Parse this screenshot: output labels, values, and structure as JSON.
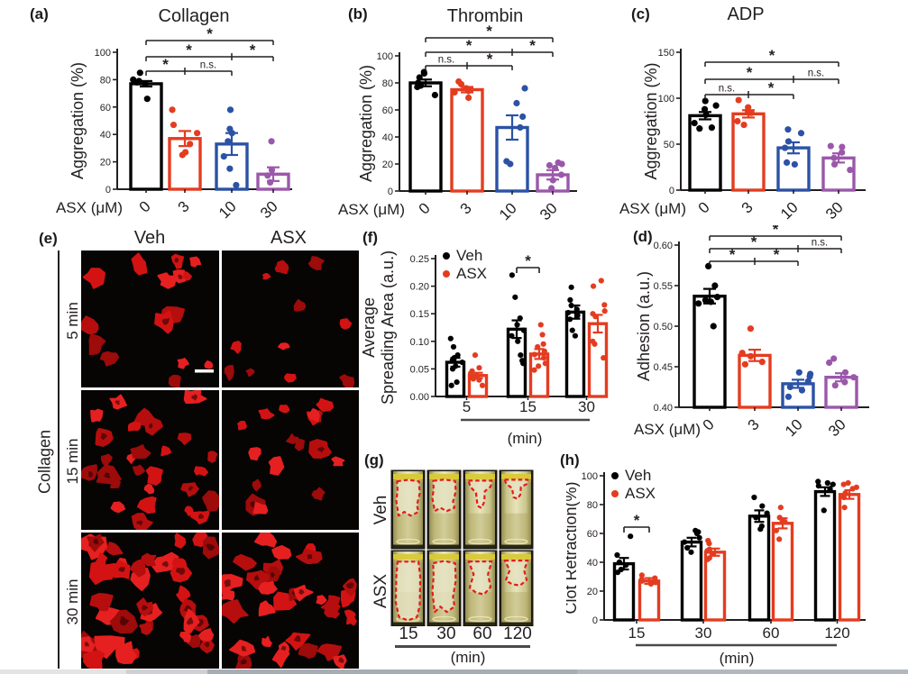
{
  "colors": {
    "black": "#000000",
    "red": "#E43C20",
    "blue": "#2B52A5",
    "purple": "#9B58AA",
    "axis": "#231F20",
    "text": "#231F20",
    "cell_bg": "#070404",
    "blob_reds": [
      "#b60e0e",
      "#d31313",
      "#e62020",
      "#9d0b0b"
    ],
    "tube_outline_red": "#e51a1a",
    "tube_body": "#cfc987",
    "clot_fill": "#e6e3c4"
  },
  "panels": {
    "a": {
      "letter": "(a)"
    },
    "b": {
      "letter": "(b)"
    },
    "c": {
      "letter": "(c)"
    },
    "d": {
      "letter": "(d)"
    },
    "e": {
      "letter": "(e)",
      "columns": [
        "Veh",
        "ASX"
      ],
      "rows": [
        "5 min",
        "15 min",
        "30 min"
      ],
      "side_label": "Collagen",
      "cells": [
        {
          "col": "Veh",
          "row": "5 min",
          "blob_count": 15,
          "blob_min": 4,
          "blob_max": 13,
          "scale_bar": true
        },
        {
          "col": "ASX",
          "row": "5 min",
          "blob_count": 11,
          "blob_min": 3,
          "blob_max": 9,
          "scale_bar": false
        },
        {
          "col": "Veh",
          "row": "15 min",
          "blob_count": 27,
          "blob_min": 5,
          "blob_max": 13,
          "scale_bar": false
        },
        {
          "col": "ASX",
          "row": "15 min",
          "blob_count": 17,
          "blob_min": 5,
          "blob_max": 12,
          "scale_bar": false
        },
        {
          "col": "Veh",
          "row": "30 min",
          "blob_count": 38,
          "blob_min": 6,
          "blob_max": 16,
          "scale_bar": false
        },
        {
          "col": "ASX",
          "row": "30 min",
          "blob_count": 33,
          "blob_min": 5,
          "blob_max": 14,
          "scale_bar": false
        }
      ]
    },
    "f": {
      "letter": "(f)"
    },
    "g": {
      "letter": "(g)",
      "rows": [
        "Veh",
        "ASX"
      ],
      "times": [
        "15",
        "30",
        "60",
        "120"
      ],
      "xlabel": "(min)",
      "tubes": [
        {
          "row": "Veh",
          "clots": [
            {
              "style": "blob",
              "frac": 0.58
            },
            {
              "style": "blob",
              "frac": 0.52
            },
            {
              "style": "funnel",
              "frac": 0.48
            },
            {
              "style": "funnel",
              "frac": 0.36
            }
          ]
        },
        {
          "row": "ASX",
          "clots": [
            {
              "style": "full",
              "frac": 0.95
            },
            {
              "style": "blob",
              "frac": 0.82
            },
            {
              "style": "hourglass",
              "frac": 0.58
            },
            {
              "style": "hourglass",
              "frac": 0.46
            }
          ]
        }
      ]
    },
    "h": {
      "letter": "(h)"
    }
  },
  "chart_data": [
    {
      "id": "a",
      "type": "bar",
      "title": "Collagen",
      "ylabel": "Aggregation (%)",
      "xlabel": "ASX (μM)",
      "categories": [
        "0",
        "3",
        "10",
        "30"
      ],
      "values": [
        77,
        37,
        33,
        11
      ],
      "errors": [
        2,
        5.5,
        8,
        5
      ],
      "dots": [
        [
          85,
          80,
          79,
          78,
          77,
          66
        ],
        [
          58,
          47,
          41,
          33,
          27,
          25
        ],
        [
          58,
          44,
          41,
          35,
          24,
          15,
          3
        ],
        [
          35,
          14,
          10,
          5
        ]
      ],
      "bar_colors": [
        "black",
        "red",
        "blue",
        "purple"
      ],
      "ylim": [
        0,
        100
      ],
      "yticks": [
        0,
        20,
        40,
        60,
        80,
        100
      ],
      "ytick_decimals": 0,
      "grid": false,
      "brackets": [
        {
          "from": 0,
          "to": 3,
          "breaks": [],
          "labels": [
            {
              "between": [
                0,
                3
              ],
              "text": "*"
            }
          ]
        },
        {
          "from": 0,
          "to": 3,
          "breaks": [
            2
          ],
          "labels": [
            {
              "between": [
                0,
                2
              ],
              "text": "*"
            },
            {
              "between": [
                2,
                3
              ],
              "text": "*"
            }
          ]
        },
        {
          "from": 0,
          "to": 2,
          "breaks": [
            1
          ],
          "labels": [
            {
              "between": [
                0,
                1
              ],
              "text": "*"
            },
            {
              "between": [
                1,
                2
              ],
              "text": "n.s."
            }
          ]
        }
      ]
    },
    {
      "id": "b",
      "type": "bar",
      "title": "Thrombin",
      "ylabel": "Aggregation (%)",
      "xlabel": "ASX (μM)",
      "categories": [
        "0",
        "3",
        "10",
        "30"
      ],
      "values": [
        80,
        75,
        47,
        12
      ],
      "errors": [
        2.5,
        2,
        9,
        3.5
      ],
      "dots": [
        [
          88,
          87,
          84,
          80,
          78,
          77,
          71
        ],
        [
          81,
          79,
          76,
          75,
          74,
          73,
          69
        ],
        [
          76,
          65,
          55,
          47,
          22,
          20
        ],
        [
          21,
          20,
          19,
          17,
          12,
          8,
          2
        ]
      ],
      "bar_colors": [
        "black",
        "red",
        "blue",
        "purple"
      ],
      "ylim": [
        0,
        100
      ],
      "yticks": [
        0,
        20,
        40,
        60,
        80,
        100
      ],
      "ytick_decimals": 0,
      "grid": false,
      "brackets": [
        {
          "from": 0,
          "to": 3,
          "breaks": [],
          "labels": [
            {
              "between": [
                0,
                3
              ],
              "text": "*"
            }
          ]
        },
        {
          "from": 0,
          "to": 3,
          "breaks": [
            2
          ],
          "labels": [
            {
              "between": [
                0,
                2
              ],
              "text": "*"
            },
            {
              "between": [
                2,
                3
              ],
              "text": "*"
            }
          ]
        },
        {
          "from": 0,
          "to": 2,
          "breaks": [
            1
          ],
          "labels": [
            {
              "between": [
                0,
                1
              ],
              "text": "n.s."
            },
            {
              "between": [
                1,
                2
              ],
              "text": "*"
            }
          ]
        }
      ]
    },
    {
      "id": "c",
      "type": "bar",
      "title": "ADP",
      "ylabel": "Aggregation (%)",
      "xlabel": "ASX (μM)",
      "categories": [
        "0",
        "3",
        "10",
        "30"
      ],
      "values": [
        81,
        83,
        46,
        35
      ],
      "errors": [
        4,
        4,
        6,
        5
      ],
      "dots": [
        [
          97,
          92,
          88,
          82,
          73,
          68,
          67
        ],
        [
          98,
          90,
          86,
          84,
          75,
          71
        ],
        [
          66,
          62,
          53,
          46,
          30,
          28
        ],
        [
          48,
          47,
          41,
          35,
          28,
          22
        ]
      ],
      "bar_colors": [
        "black",
        "red",
        "blue",
        "purple"
      ],
      "ylim": [
        0,
        150
      ],
      "yticks": [
        0,
        50,
        100,
        150
      ],
      "ytick_decimals": 0,
      "grid": false,
      "brackets": [
        {
          "from": 0,
          "to": 3,
          "breaks": [],
          "labels": [
            {
              "between": [
                0,
                3
              ],
              "text": "*"
            }
          ]
        },
        {
          "from": 0,
          "to": 3,
          "breaks": [
            2
          ],
          "labels": [
            {
              "between": [
                0,
                2
              ],
              "text": "*"
            },
            {
              "between": [
                2,
                3
              ],
              "text": "n.s."
            }
          ]
        },
        {
          "from": 0,
          "to": 2,
          "breaks": [
            1
          ],
          "labels": [
            {
              "between": [
                0,
                1
              ],
              "text": "n.s."
            },
            {
              "between": [
                1,
                2
              ],
              "text": "*"
            }
          ]
        }
      ]
    },
    {
      "id": "d",
      "type": "bar",
      "title": "",
      "ylabel": "Adhesion (a.u.)",
      "xlabel": "ASX (μM)",
      "categories": [
        "0",
        "3",
        "10",
        "30"
      ],
      "values": [
        0.537,
        0.464,
        0.429,
        0.437
      ],
      "errors": [
        0.009,
        0.007,
        0.005,
        0.005
      ],
      "dots": [
        [
          0.574,
          0.55,
          0.536,
          0.532,
          0.53,
          0.528,
          0.5
        ],
        [
          0.497,
          0.467,
          0.463,
          0.456,
          0.453
        ],
        [
          0.443,
          0.441,
          0.438,
          0.432,
          0.425,
          0.421,
          0.413
        ],
        [
          0.46,
          0.455,
          0.443,
          0.437,
          0.431,
          0.427
        ]
      ],
      "bar_colors": [
        "black",
        "red",
        "blue",
        "purple"
      ],
      "ylim": [
        0.4,
        0.6
      ],
      "yticks": [
        0.4,
        0.45,
        0.5,
        0.55,
        0.6
      ],
      "ytick_decimals": 2,
      "grid": false,
      "brackets": [
        {
          "from": 0,
          "to": 3,
          "breaks": [],
          "labels": [
            {
              "between": [
                0,
                3
              ],
              "text": "*"
            }
          ]
        },
        {
          "from": 0,
          "to": 3,
          "breaks": [
            2
          ],
          "labels": [
            {
              "between": [
                0,
                2
              ],
              "text": "*"
            },
            {
              "between": [
                2,
                3
              ],
              "text": "n.s."
            }
          ]
        },
        {
          "from": 0,
          "to": 2,
          "breaks": [
            1
          ],
          "labels": [
            {
              "between": [
                0,
                1
              ],
              "text": "*"
            },
            {
              "between": [
                1,
                2
              ],
              "text": "*"
            }
          ]
        }
      ]
    },
    {
      "id": "f",
      "type": "bar",
      "title": "",
      "ylabel": [
        "Average",
        "Spreading Area (a.u.)"
      ],
      "xlabel": "(min)",
      "categories": [
        "5",
        "15",
        "30"
      ],
      "series": [
        {
          "name": "Veh",
          "color": "black",
          "values": [
            0.062,
            0.122,
            0.153
          ],
          "errors": [
            0.008,
            0.016,
            0.012
          ],
          "dots": [
            [
              0.105,
              0.09,
              0.075,
              0.07,
              0.066,
              0.062,
              0.055,
              0.05,
              0.026,
              0.02
            ],
            [
              0.22,
              0.18,
              0.142,
              0.13,
              0.12,
              0.11,
              0.1,
              0.075,
              0.065,
              0.06
            ],
            [
              0.198,
              0.175,
              0.165,
              0.158,
              0.152,
              0.147,
              0.14,
              0.12,
              0.11
            ]
          ]
        },
        {
          "name": "ASX",
          "color": "red",
          "values": [
            0.038,
            0.077,
            0.132
          ],
          "errors": [
            0.005,
            0.009,
            0.016
          ],
          "dots": [
            [
              0.075,
              0.052,
              0.046,
              0.042,
              0.038,
              0.035,
              0.032,
              0.03,
              0.02
            ],
            [
              0.13,
              0.112,
              0.095,
              0.09,
              0.082,
              0.076,
              0.07,
              0.06,
              0.055,
              0.048
            ],
            [
              0.21,
              0.2,
              0.166,
              0.155,
              0.15,
              0.145,
              0.1,
              0.095,
              0.07
            ]
          ]
        }
      ],
      "ylim": [
        0,
        0.25
      ],
      "yticks": [
        0,
        0.05,
        0.1,
        0.15,
        0.2,
        0.25
      ],
      "ytick_decimals": 2,
      "grid": false,
      "legend_position": "top-left",
      "pair_bracket": {
        "group": 1,
        "text": "*"
      }
    },
    {
      "id": "h",
      "type": "bar",
      "title": "",
      "ylabel": "Clot Retraction(%)",
      "xlabel": "(min)",
      "categories": [
        "15",
        "30",
        "60",
        "120"
      ],
      "series": [
        {
          "name": "Veh",
          "color": "black",
          "values": [
            39,
            54,
            72,
            89
          ],
          "errors": [
            4,
            3,
            4,
            3
          ],
          "dots": [
            [
              58,
              45,
              40,
              38,
              35,
              33
            ],
            [
              62,
              61,
              60,
              57,
              54,
              50,
              47
            ],
            [
              85,
              79,
              74,
              71,
              65,
              63
            ],
            [
              96,
              95,
              94,
              93,
              91,
              90,
              76
            ]
          ]
        },
        {
          "name": "ASX",
          "color": "red",
          "values": [
            27,
            47,
            67,
            87
          ],
          "errors": [
            2,
            2.5,
            3.5,
            3
          ],
          "dots": [
            [
              31,
              29,
              28,
              27,
              26,
              25
            ],
            [
              55,
              53,
              49,
              48,
              46,
              43,
              42
            ],
            [
              78,
              71,
              69,
              68,
              62,
              56
            ],
            [
              95,
              94,
              92,
              91,
              88,
              85,
              78
            ]
          ]
        }
      ],
      "ylim": [
        0,
        100
      ],
      "yticks": [
        0,
        20,
        40,
        60,
        80,
        100
      ],
      "ytick_decimals": 0,
      "grid": false,
      "legend_position": "top-left",
      "pair_bracket": {
        "group": 0,
        "text": "*"
      }
    }
  ]
}
